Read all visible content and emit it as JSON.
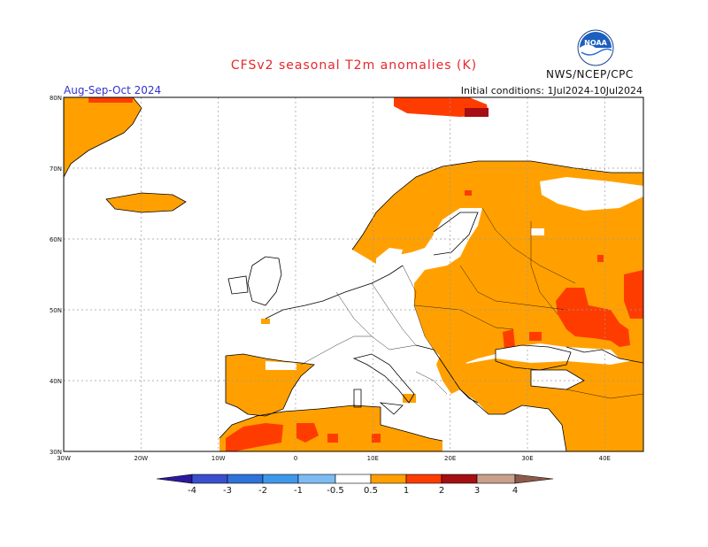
{
  "header": {
    "title": "CFSv2 seasonal T2m anomalies (K)",
    "season": "Aug-Sep-Oct 2024",
    "initial_conditions": "Initial conditions: 1Jul2024-10Jul2024",
    "agency": "NWS/NCEP/CPC",
    "logo_text": "NOAA"
  },
  "map": {
    "lat_labels": [
      "80N",
      "70N",
      "60N",
      "50N",
      "40N",
      "30N"
    ],
    "lon_labels": [
      "30W",
      "20W",
      "10W",
      "0",
      "10E",
      "20E",
      "30E",
      "40E"
    ],
    "lat_range": [
      30,
      80
    ],
    "lon_range": [
      -30,
      45
    ]
  },
  "colorbar": {
    "labels": [
      "-4",
      "-3",
      "-2",
      "-1",
      "-0.5",
      "0.5",
      "1",
      "2",
      "3",
      "4"
    ],
    "colors": [
      "#2b1a9e",
      "#3a4fcf",
      "#2e73d8",
      "#3f97ec",
      "#7cbcf2",
      "#ffffff",
      "#ffa000",
      "#ff3c00",
      "#a50e12",
      "#c8a08c",
      "#8c5a4a"
    ]
  }
}
